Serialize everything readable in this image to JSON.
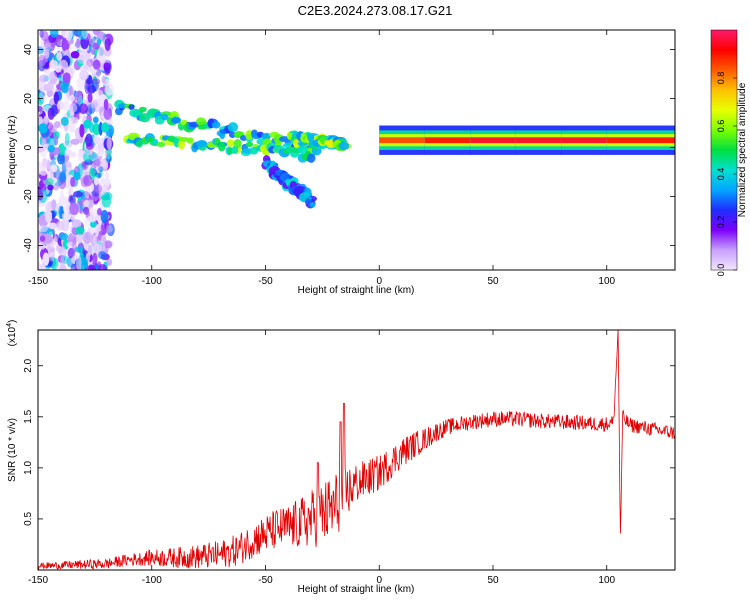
{
  "title": "C2E3.2024.273.08.17.G21",
  "chart_data": [
    {
      "type": "heatmap",
      "xlabel": "Height of straight line (km)",
      "ylabel": "Frequency (Hz)",
      "xlim": [
        -150,
        130
      ],
      "ylim": [
        -50,
        48
      ],
      "xticks": [
        -150,
        -100,
        -50,
        0,
        50,
        100
      ],
      "yticks": [
        -40,
        -20,
        0,
        20,
        40
      ],
      "colorbar": {
        "label": "Normalized spectral amplitude",
        "range": [
          0,
          1
        ],
        "ticks": [
          "0.0",
          "0.2",
          "0.4",
          "0.6",
          "0.8"
        ],
        "colors": [
          "#f2e6ff",
          "#c8a0ff",
          "#7b00ff",
          "#1f2dff",
          "#00a6ff",
          "#00e0d0",
          "#00e040",
          "#7fff00",
          "#e8ff00",
          "#ffc000",
          "#ff5a00",
          "#ff0000",
          "#ff1a6e"
        ]
      },
      "main_band": [
        {
          "x": 0,
          "y": 3,
          "amp": 0.85
        },
        {
          "x": 20,
          "y": 3,
          "amp": 0.9
        },
        {
          "x": 40,
          "y": 3,
          "amp": 0.95
        },
        {
          "x": 60,
          "y": 3,
          "amp": 0.95
        },
        {
          "x": 80,
          "y": 3,
          "amp": 0.95
        },
        {
          "x": 100,
          "y": 3,
          "amp": 0.9
        },
        {
          "x": 130,
          "y": 3,
          "amp": 0.95
        }
      ],
      "secondary_streaks": [
        {
          "from": [
            -115,
            16
          ],
          "to": [
            -30,
            0
          ],
          "amp": 0.5
        },
        {
          "from": [
            -110,
            4
          ],
          "to": [
            -28,
            -3
          ],
          "amp": 0.55
        },
        {
          "from": [
            -38,
            4
          ],
          "to": [
            -15,
            1
          ],
          "amp": 0.6
        },
        {
          "from": [
            -50,
            -6
          ],
          "to": [
            -30,
            -22
          ],
          "amp": 0.35
        }
      ],
      "noise_region": {
        "x": [
          -150,
          -118
        ],
        "y": [
          -50,
          48
        ]
      },
      "grid": false
    },
    {
      "type": "line",
      "xlabel": "Height of straight line (km)",
      "ylabel": "SNR (10 * v/v)",
      "y_multiplier": "(x10",
      "y_multiplier_exp": "4",
      "ylim": [
        0,
        2.35
      ],
      "xlim": [
        -150,
        130
      ],
      "xticks": [
        -150,
        -100,
        -50,
        0,
        50,
        100
      ],
      "yticks": [
        "0.5",
        "1.0",
        "1.5",
        "2.0"
      ],
      "series_color": "#e00000",
      "envelope_x": [
        -150,
        -120,
        -110,
        -100,
        -90,
        -80,
        -70,
        -62,
        -55,
        -50,
        -45,
        -40,
        -35,
        -30,
        -25,
        -20,
        -17,
        -15,
        -10,
        -5,
        0,
        5,
        10,
        15,
        20,
        25,
        30,
        40,
        50,
        60,
        70,
        80,
        90,
        95,
        100,
        103,
        105,
        106,
        107,
        110,
        115,
        120,
        125,
        130
      ],
      "envelope_y": [
        0.04,
        0.06,
        0.1,
        0.12,
        0.12,
        0.13,
        0.15,
        0.2,
        0.3,
        0.35,
        0.4,
        0.42,
        0.45,
        0.5,
        0.55,
        0.6,
        0.7,
        0.75,
        0.85,
        0.9,
        0.95,
        1.05,
        1.15,
        1.22,
        1.28,
        1.35,
        1.4,
        1.45,
        1.48,
        1.48,
        1.46,
        1.45,
        1.44,
        1.43,
        1.43,
        1.45,
        2.35,
        0.3,
        1.5,
        1.42,
        1.4,
        1.38,
        1.36,
        1.34
      ],
      "noise_amp_x": [
        -150,
        -110,
        -65,
        -40,
        -20,
        -10,
        10,
        30,
        130
      ],
      "noise_amp_y": [
        0.03,
        0.06,
        0.15,
        0.22,
        0.35,
        0.2,
        0.15,
        0.08,
        0.07
      ],
      "spikes": [
        {
          "x": -15.5,
          "y": 1.63
        },
        {
          "x": -17,
          "y": 1.45
        },
        {
          "x": -27,
          "y": 1.05
        }
      ],
      "grid": false
    }
  ]
}
